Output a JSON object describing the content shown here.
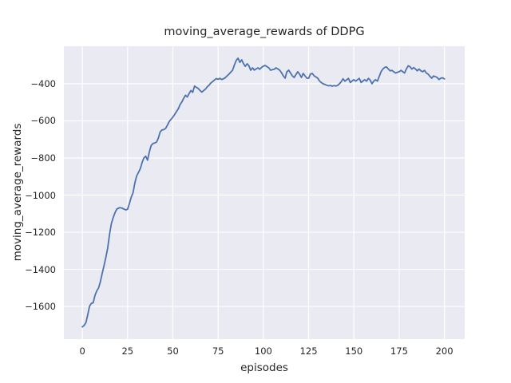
{
  "figure": {
    "background": "#ffffff",
    "text_color": "#262626"
  },
  "chart_data": {
    "type": "line",
    "title": "moving_average_rewards of DDPG",
    "xlabel": "episodes",
    "ylabel": "moving_average_rewards",
    "x_ticks": [
      0,
      25,
      50,
      75,
      100,
      125,
      150,
      175,
      200
    ],
    "y_ticks": [
      -400,
      -600,
      -800,
      -1000,
      -1200,
      -1400,
      -1600
    ],
    "xlim": [
      -10.2,
      211.2
    ],
    "ylim": [
      -1776,
      -198
    ],
    "grid": true,
    "grid_color": "#ffffff",
    "plot_background": "#eaeaf2",
    "legend": false,
    "series": [
      {
        "name": "moving_average_rewards",
        "color": "#4c72b0",
        "x": [
          0,
          1,
          2,
          3,
          4,
          5,
          6,
          7,
          8,
          9,
          10,
          11,
          12,
          13,
          14,
          15,
          16,
          17,
          18,
          19,
          20,
          21,
          22,
          23,
          24,
          25,
          26,
          27,
          28,
          29,
          30,
          31,
          32,
          33,
          34,
          35,
          36,
          37,
          38,
          39,
          40,
          41,
          42,
          43,
          44,
          45,
          46,
          47,
          48,
          49,
          50,
          51,
          52,
          53,
          54,
          55,
          56,
          57,
          58,
          59,
          60,
          61,
          62,
          63,
          64,
          65,
          66,
          67,
          68,
          69,
          70,
          71,
          72,
          73,
          74,
          75,
          76,
          77,
          78,
          79,
          80,
          81,
          82,
          83,
          84,
          85,
          86,
          87,
          88,
          89,
          90,
          91,
          92,
          93,
          94,
          95,
          96,
          97,
          98,
          99,
          100,
          101,
          102,
          103,
          104,
          105,
          106,
          107,
          108,
          109,
          110,
          111,
          112,
          113,
          114,
          115,
          116,
          117,
          118,
          119,
          120,
          121,
          122,
          123,
          124,
          125,
          126,
          127,
          128,
          129,
          130,
          131,
          132,
          133,
          134,
          135,
          136,
          137,
          138,
          139,
          140,
          141,
          142,
          143,
          144,
          145,
          146,
          147,
          148,
          149,
          150,
          151,
          152,
          153,
          154,
          155,
          156,
          157,
          158,
          159,
          160,
          161,
          162,
          163,
          164,
          165,
          166,
          167,
          168,
          169,
          170,
          171,
          172,
          173,
          174,
          175,
          176,
          177,
          178,
          179,
          180,
          181,
          182,
          183,
          184,
          185,
          186,
          187,
          188,
          189,
          190,
          191,
          192,
          193,
          194,
          195,
          196,
          197,
          198,
          199,
          200
        ],
        "y": [
          -1710,
          -1702,
          -1686,
          -1645,
          -1598,
          -1583,
          -1580,
          -1540,
          -1515,
          -1500,
          -1465,
          -1420,
          -1380,
          -1335,
          -1285,
          -1215,
          -1155,
          -1122,
          -1096,
          -1076,
          -1070,
          -1068,
          -1071,
          -1075,
          -1080,
          -1076,
          -1045,
          -1012,
          -988,
          -935,
          -897,
          -878,
          -858,
          -824,
          -800,
          -790,
          -812,
          -768,
          -733,
          -722,
          -719,
          -714,
          -692,
          -660,
          -649,
          -647,
          -641,
          -623,
          -603,
          -592,
          -580,
          -565,
          -550,
          -535,
          -512,
          -498,
          -478,
          -462,
          -471,
          -452,
          -436,
          -446,
          -412,
          -420,
          -425,
          -436,
          -445,
          -437,
          -429,
          -416,
          -408,
          -396,
          -388,
          -380,
          -372,
          -376,
          -371,
          -377,
          -373,
          -367,
          -357,
          -348,
          -337,
          -327,
          -298,
          -274,
          -262,
          -285,
          -271,
          -291,
          -306,
          -292,
          -303,
          -327,
          -314,
          -326,
          -320,
          -314,
          -322,
          -312,
          -305,
          -301,
          -308,
          -314,
          -327,
          -324,
          -322,
          -314,
          -320,
          -327,
          -340,
          -357,
          -370,
          -335,
          -327,
          -342,
          -357,
          -366,
          -350,
          -335,
          -348,
          -366,
          -344,
          -357,
          -370,
          -370,
          -348,
          -344,
          -357,
          -363,
          -370,
          -385,
          -393,
          -400,
          -404,
          -408,
          -411,
          -409,
          -413,
          -410,
          -412,
          -409,
          -400,
          -389,
          -373,
          -386,
          -379,
          -371,
          -393,
          -385,
          -378,
          -386,
          -378,
          -371,
          -393,
          -385,
          -378,
          -386,
          -371,
          -380,
          -400,
          -385,
          -378,
          -386,
          -360,
          -335,
          -321,
          -312,
          -309,
          -320,
          -330,
          -328,
          -335,
          -342,
          -338,
          -335,
          -328,
          -335,
          -342,
          -320,
          -303,
          -308,
          -321,
          -313,
          -320,
          -330,
          -321,
          -330,
          -335,
          -328,
          -342,
          -348,
          -360,
          -370,
          -358,
          -362,
          -366,
          -377,
          -370,
          -368,
          -374
        ]
      }
    ]
  }
}
